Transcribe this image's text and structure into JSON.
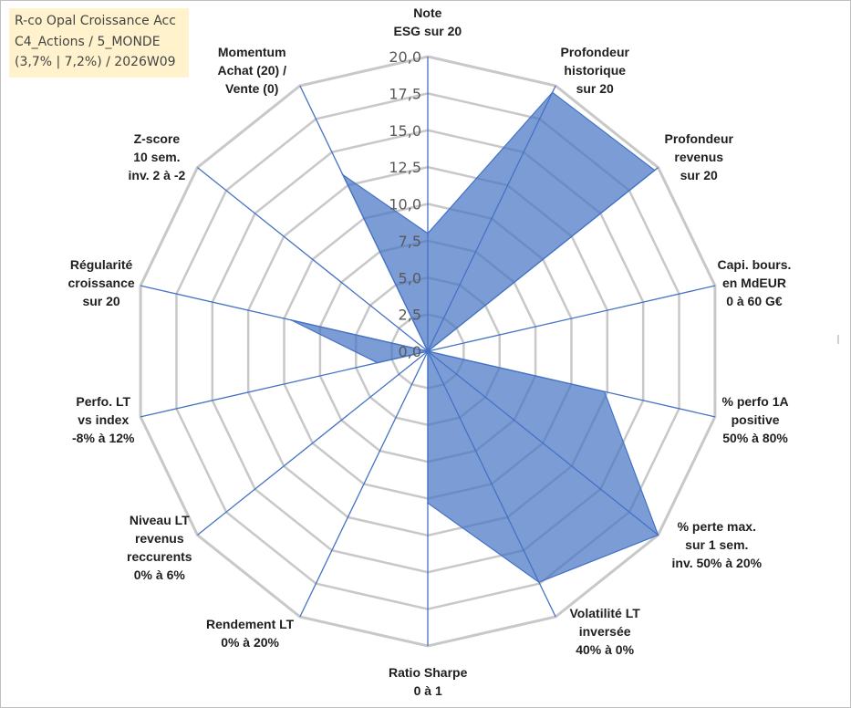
{
  "title_box": {
    "line1": "R-co Opal Croissance Acc",
    "line2": "C4_Actions / 5_MONDE",
    "line3": "(3,7% | 7,2%) / 2026W09"
  },
  "colors": {
    "title_bg": "#fff2cc",
    "grid": "#c8c8c8",
    "spoke": "#4472c4",
    "fill": "#4472c4",
    "fill_opacity": "0.7"
  },
  "chart_data": {
    "type": "radar",
    "categories": [
      [
        "Note",
        "ESG sur 20"
      ],
      [
        "Profondeur",
        "historique",
        "sur 20"
      ],
      [
        "Profondeur",
        "revenus",
        "sur 20"
      ],
      [
        "Capi. bours.",
        "en MdEUR",
        "0 à 60 G€"
      ],
      [
        "% perfo 1A",
        "positive",
        "50% à 80%"
      ],
      [
        "% perte max.",
        "sur 1 sem.",
        "inv. 50% à 20%"
      ],
      [
        "Volatilité LT",
        "inversée",
        "40% à 0%"
      ],
      [
        "Ratio Sharpe",
        "0 à 1"
      ],
      [
        "Rendement LT",
        "0% à 20%"
      ],
      [
        "Niveau LT",
        "revenus",
        "reccurents",
        "0% à 6%"
      ],
      [
        "Perfo. LT",
        "vs index",
        "-8% à 12%"
      ],
      [
        "Régularité",
        "croissance",
        "sur 20"
      ],
      [
        "Z-score",
        "10 sem.",
        "inv. 2 à -2"
      ],
      [
        "Momentum",
        "Achat (20) /",
        "Vente (0)"
      ]
    ],
    "values": [
      8,
      19.5,
      19.7,
      0,
      12.3,
      20,
      17.4,
      10.3,
      0,
      0,
      3.5,
      9.5,
      0,
      13.3
    ],
    "ylim": [
      0,
      20
    ],
    "tick_labels": [
      "0,0",
      "2,5",
      "5,0",
      "7,5",
      "10,0",
      "12,5",
      "15,0",
      "17,5",
      "20,0"
    ],
    "grid": true,
    "legend": "none"
  }
}
